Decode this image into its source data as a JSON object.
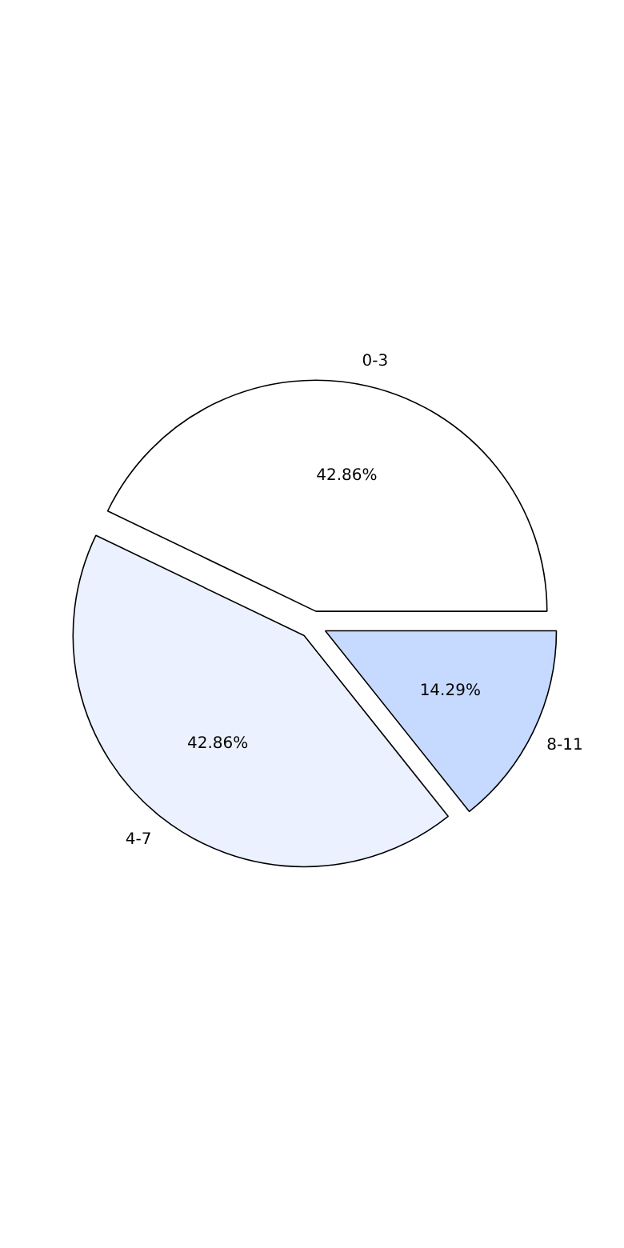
{
  "chart_data": {
    "type": "pie",
    "categories": [
      "0-3",
      "4-7",
      "8-11"
    ],
    "values": [
      42.86,
      42.86,
      14.29
    ],
    "colors": [
      "#ffffff",
      "#ebf1fe",
      "#c6d9fe"
    ],
    "value_labels": [
      "42.86%",
      "42.86%",
      "14.29%"
    ]
  }
}
